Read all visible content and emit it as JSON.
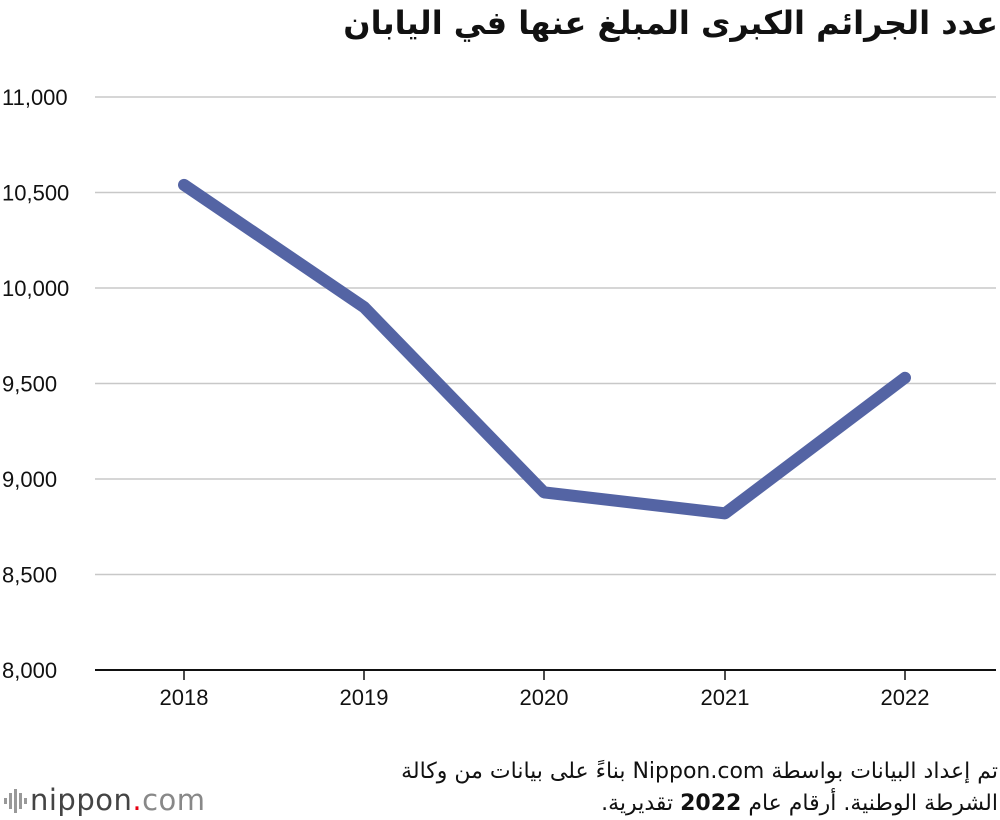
{
  "chart_data": {
    "type": "line",
    "title": "عدد الجرائم الكبرى المبلغ عنها في اليابان",
    "categories": [
      "2018",
      "2019",
      "2020",
      "2021",
      "2022"
    ],
    "series": [
      {
        "values": [
          10540,
          9900,
          8930,
          8820,
          9530
        ],
        "color": "#5464a4"
      }
    ],
    "ylim": [
      8000,
      11000
    ],
    "yticks": [
      8000,
      8500,
      9000,
      9500,
      10000,
      10500,
      11000
    ],
    "ytick_labels": [
      "8,000",
      "8,500",
      "9,000",
      "9,500",
      "10,000",
      "10,500",
      "11,000"
    ],
    "grid": true,
    "xlabel": "",
    "ylabel": ""
  },
  "note": {
    "line1": "تم إعداد البيانات بواسطة Nippon.com بناءً على بيانات من وكالة",
    "line2_pre": "الشرطة الوطنية. أرقام عام ",
    "line2_bold": "2022",
    "line2_post": " تقديرية."
  },
  "logo": {
    "name": "nippon",
    "dot": ".",
    "suffix": "com"
  },
  "colors": {
    "line": "#5464a4",
    "grid": "#c8c8c8",
    "axis": "#111111",
    "logo_dot": "#e60012"
  }
}
